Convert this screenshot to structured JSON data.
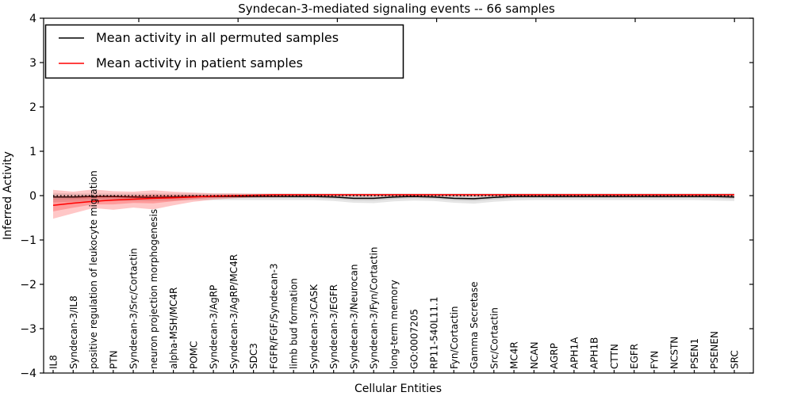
{
  "figure": {
    "title": "Syndecan-3-mediated signaling events -- 66 samples",
    "xlabel": "Cellular Entities",
    "ylabel": "Inferred Activity"
  },
  "legend": {
    "items": [
      {
        "label": "Mean activity in all permuted samples",
        "color": "#000000"
      },
      {
        "label": "Mean activity in patient samples",
        "color": "#ff0000"
      }
    ]
  },
  "chart_data": {
    "type": "line",
    "title": "Syndecan-3-mediated signaling events -- 66 samples",
    "xlabel": "Cellular Entities",
    "ylabel": "Inferred Activity",
    "ylim": [
      -4,
      4
    ],
    "grid": false,
    "legend_position": "upper left",
    "ytick_values": [
      4,
      3,
      2,
      1,
      0,
      -1,
      -2,
      -3,
      -4
    ],
    "ytick_labels": [
      "4",
      "3",
      "2",
      "1",
      "0",
      "−1",
      "−2",
      "−3",
      "−4"
    ],
    "zero_line": {
      "y": 0,
      "color": "#000000",
      "style": "dotted"
    },
    "categories": [
      "IL8",
      "Syndecan-3/IL8",
      "positive regulation of leukocyte migration",
      "PTN",
      "Syndecan-3/Src/Cortactin",
      "neuron projection morphogenesis",
      "alpha-MSH/MC4R",
      "POMC",
      "Syndecan-3/AgRP",
      "Syndecan-3/AgRP/MC4R",
      "SDC3",
      "FGFR/FGF/Syndecan-3",
      "limb bud formation",
      "Syndecan-3/CASK",
      "Syndecan-3/EGFR",
      "Syndecan-3/Neurocan",
      "Syndecan-3/Fyn/Cortactin",
      "long-term memory",
      "GO:0007205",
      "RP11-540L11.1",
      "Fyn/Cortactin",
      "Gamma Secretase",
      "Src/Cortactin",
      "MC4R",
      "NCAN",
      "AGRP",
      "APH1A",
      "APH1B",
      "CTTN",
      "EGFR",
      "FYN",
      "NCSTN",
      "PSEN1",
      "PSENEN",
      "SRC"
    ],
    "series": [
      {
        "name": "Mean activity in all permuted samples",
        "color": "#000000",
        "band_color": "rgba(0,0,0,0.10)",
        "values": [
          -0.03,
          -0.03,
          -0.02,
          -0.02,
          -0.03,
          -0.04,
          -0.03,
          -0.02,
          -0.02,
          -0.02,
          -0.02,
          -0.02,
          -0.02,
          -0.02,
          -0.03,
          -0.06,
          -0.06,
          -0.03,
          -0.02,
          -0.03,
          -0.06,
          -0.07,
          -0.04,
          -0.02,
          -0.02,
          -0.02,
          -0.02,
          -0.02,
          -0.02,
          -0.02,
          -0.02,
          -0.02,
          -0.02,
          -0.02,
          -0.03
        ],
        "band_upper": [
          0.06,
          0.05,
          0.05,
          0.05,
          0.05,
          0.05,
          0.05,
          0.05,
          0.05,
          0.05,
          0.05,
          0.05,
          0.05,
          0.05,
          0.05,
          0.05,
          0.05,
          0.05,
          0.05,
          0.05,
          0.05,
          0.05,
          0.05,
          0.05,
          0.05,
          0.05,
          0.05,
          0.05,
          0.05,
          0.05,
          0.05,
          0.05,
          0.05,
          0.05,
          0.06
        ],
        "band_lower": [
          -0.15,
          -0.14,
          -0.13,
          -0.12,
          -0.12,
          -0.12,
          -0.11,
          -0.1,
          -0.1,
          -0.1,
          -0.1,
          -0.1,
          -0.1,
          -0.1,
          -0.12,
          -0.16,
          -0.17,
          -0.13,
          -0.11,
          -0.12,
          -0.16,
          -0.18,
          -0.14,
          -0.11,
          -0.1,
          -0.1,
          -0.1,
          -0.1,
          -0.1,
          -0.1,
          -0.1,
          -0.1,
          -0.1,
          -0.11,
          -0.12
        ]
      },
      {
        "name": "Mean activity in patient samples",
        "color": "#ff0000",
        "band_color": "rgba(255,0,0,0.22)",
        "values": [
          -0.22,
          -0.17,
          -0.13,
          -0.1,
          -0.08,
          -0.06,
          -0.05,
          -0.03,
          -0.01,
          0.0,
          0.01,
          0.02,
          0.02,
          0.02,
          0.02,
          0.02,
          0.02,
          0.02,
          0.02,
          0.02,
          0.02,
          0.02,
          0.02,
          0.02,
          0.02,
          0.02,
          0.02,
          0.02,
          0.02,
          0.02,
          0.02,
          0.02,
          0.02,
          0.02,
          0.02
        ],
        "band_upper": [
          0.13,
          0.09,
          0.14,
          0.1,
          0.09,
          0.12,
          0.09,
          0.07,
          0.05,
          0.05,
          0.04,
          0.04,
          0.04,
          0.04,
          0.04,
          0.04,
          0.04,
          0.04,
          0.04,
          0.04,
          0.04,
          0.04,
          0.04,
          0.04,
          0.04,
          0.04,
          0.04,
          0.04,
          0.04,
          0.04,
          0.04,
          0.04,
          0.04,
          0.04,
          0.04
        ],
        "band_lower": [
          -0.52,
          -0.4,
          -0.28,
          -0.32,
          -0.27,
          -0.31,
          -0.22,
          -0.14,
          -0.09,
          -0.06,
          -0.04,
          -0.03,
          -0.02,
          -0.02,
          -0.02,
          -0.02,
          -0.02,
          -0.02,
          -0.02,
          -0.02,
          -0.02,
          -0.02,
          -0.02,
          -0.02,
          -0.02,
          -0.02,
          -0.02,
          -0.02,
          -0.02,
          -0.02,
          -0.02,
          -0.02,
          -0.02,
          -0.02,
          -0.02
        ]
      }
    ]
  }
}
